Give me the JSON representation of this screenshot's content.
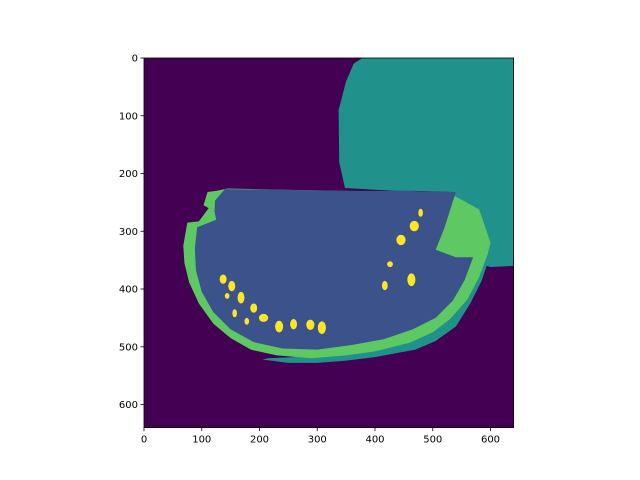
{
  "chart_data": {
    "type": "heatmap",
    "title": "",
    "xlabel": "",
    "ylabel": "",
    "xlim": [
      0,
      640
    ],
    "ylim": [
      640,
      0
    ],
    "x_ticks": [
      0,
      100,
      200,
      300,
      400,
      500,
      600
    ],
    "y_ticks": [
      0,
      100,
      200,
      300,
      400,
      500,
      600
    ],
    "x_tick_labels": [
      "0",
      "100",
      "200",
      "300",
      "400",
      "500",
      "600"
    ],
    "y_tick_labels": [
      "0",
      "100",
      "200",
      "300",
      "400",
      "500",
      "600"
    ],
    "colormap": "viridis",
    "grid": false,
    "colors": {
      "background": "#440154",
      "flesh": "#3b528b",
      "rind-shadow": "#21918c",
      "leaf": "#21918c",
      "rind": "#5ec962",
      "seeds": "#fde725"
    },
    "regions": [
      {
        "name": "background",
        "color": "#440154",
        "polygon": [
          [
            0,
            0
          ],
          [
            640,
            0
          ],
          [
            640,
            640
          ],
          [
            0,
            640
          ]
        ]
      },
      {
        "name": "leaf",
        "color": "#21918c",
        "polygon": [
          [
            378,
            0
          ],
          [
            640,
            0
          ],
          [
            640,
            360
          ],
          [
            600,
            362
          ],
          [
            540,
            345
          ],
          [
            520,
            338
          ],
          [
            505,
            332
          ],
          [
            520,
            295
          ],
          [
            530,
            265
          ],
          [
            535,
            232
          ],
          [
            470,
            230
          ],
          [
            435,
            230
          ],
          [
            348,
            225
          ],
          [
            338,
            180
          ],
          [
            337,
            90
          ],
          [
            350,
            40
          ],
          [
            363,
            10
          ]
        ]
      },
      {
        "name": "rind-shadow",
        "color": "#21918c",
        "polygon": [
          [
            600,
            340
          ],
          [
            585,
            385
          ],
          [
            565,
            425
          ],
          [
            540,
            465
          ],
          [
            505,
            490
          ],
          [
            470,
            505
          ],
          [
            400,
            518
          ],
          [
            350,
            524
          ],
          [
            300,
            528
          ],
          [
            250,
            528
          ],
          [
            205,
            522
          ],
          [
            215,
            520
          ],
          [
            260,
            518
          ],
          [
            320,
            514
          ],
          [
            390,
            502
          ],
          [
            450,
            485
          ],
          [
            500,
            462
          ],
          [
            540,
            432
          ],
          [
            570,
            395
          ],
          [
            590,
            350
          ]
        ]
      },
      {
        "name": "rind",
        "color": "#5ec962",
        "polygon": [
          [
            595,
            340
          ],
          [
            580,
            380
          ],
          [
            560,
            418
          ],
          [
            530,
            452
          ],
          [
            500,
            475
          ],
          [
            460,
            493
          ],
          [
            400,
            508
          ],
          [
            350,
            515
          ],
          [
            290,
            520
          ],
          [
            230,
            515
          ],
          [
            185,
            505
          ],
          [
            150,
            485
          ],
          [
            120,
            460
          ],
          [
            95,
            425
          ],
          [
            78,
            388
          ],
          [
            70,
            355
          ],
          [
            68,
            325
          ],
          [
            75,
            285
          ],
          [
            95,
            283
          ],
          [
            112,
            260
          ],
          [
            103,
            255
          ],
          [
            110,
            232
          ],
          [
            125,
            230
          ],
          [
            145,
            226
          ],
          [
            230,
            228
          ],
          [
            350,
            230
          ],
          [
            470,
            232
          ],
          [
            530,
            235
          ],
          [
            540,
            240
          ],
          [
            580,
            262
          ],
          [
            590,
            290
          ],
          [
            600,
            320
          ]
        ]
      },
      {
        "name": "flesh",
        "color": "#3b528b",
        "polygon": [
          [
            570,
            345
          ],
          [
            555,
            385
          ],
          [
            535,
            420
          ],
          [
            505,
            450
          ],
          [
            465,
            470
          ],
          [
            415,
            487
          ],
          [
            360,
            497
          ],
          [
            300,
            505
          ],
          [
            240,
            503
          ],
          [
            190,
            492
          ],
          [
            150,
            470
          ],
          [
            120,
            440
          ],
          [
            100,
            405
          ],
          [
            90,
            368
          ],
          [
            88,
            330
          ],
          [
            92,
            293
          ],
          [
            125,
            280
          ],
          [
            122,
            265
          ],
          [
            123,
            247
          ],
          [
            140,
            227
          ],
          [
            220,
            228
          ],
          [
            350,
            230
          ],
          [
            450,
            230
          ],
          [
            540,
            232
          ],
          [
            520,
            295
          ],
          [
            505,
            332
          ],
          [
            540,
            345
          ]
        ]
      },
      {
        "name": "seed",
        "color": "#fde725",
        "ellipse": [
          137,
          383,
          6,
          8
        ]
      },
      {
        "name": "seed",
        "color": "#fde725",
        "ellipse": [
          152,
          395,
          6,
          9
        ]
      },
      {
        "name": "seed",
        "color": "#fde725",
        "ellipse": [
          144,
          412,
          4,
          5
        ]
      },
      {
        "name": "seed",
        "color": "#fde725",
        "ellipse": [
          168,
          415,
          6,
          10
        ]
      },
      {
        "name": "seed",
        "color": "#fde725",
        "ellipse": [
          190,
          433,
          6,
          8
        ]
      },
      {
        "name": "seed",
        "color": "#fde725",
        "ellipse": [
          157,
          442,
          4,
          7
        ]
      },
      {
        "name": "seed",
        "color": "#fde725",
        "ellipse": [
          207,
          450,
          8,
          7
        ]
      },
      {
        "name": "seed",
        "color": "#fde725",
        "ellipse": [
          178,
          456,
          4,
          6
        ]
      },
      {
        "name": "seed",
        "color": "#fde725",
        "ellipse": [
          234,
          465,
          7,
          10
        ]
      },
      {
        "name": "seed",
        "color": "#fde725",
        "ellipse": [
          259,
          461,
          6,
          9
        ]
      },
      {
        "name": "seed",
        "color": "#fde725",
        "ellipse": [
          288,
          462,
          7,
          9
        ]
      },
      {
        "name": "seed",
        "color": "#fde725",
        "ellipse": [
          308,
          467,
          7,
          11
        ]
      },
      {
        "name": "seed",
        "color": "#fde725",
        "ellipse": [
          479,
          268,
          4,
          7
        ]
      },
      {
        "name": "seed",
        "color": "#fde725",
        "ellipse": [
          468,
          291,
          8,
          9
        ]
      },
      {
        "name": "seed",
        "color": "#fde725",
        "ellipse": [
          445,
          315,
          8,
          9
        ]
      },
      {
        "name": "seed",
        "color": "#fde725",
        "ellipse": [
          426,
          357,
          5,
          5
        ]
      },
      {
        "name": "seed",
        "color": "#fde725",
        "ellipse": [
          463,
          384,
          7,
          11
        ]
      },
      {
        "name": "seed",
        "color": "#fde725",
        "ellipse": [
          417,
          394,
          5,
          8
        ]
      }
    ]
  }
}
